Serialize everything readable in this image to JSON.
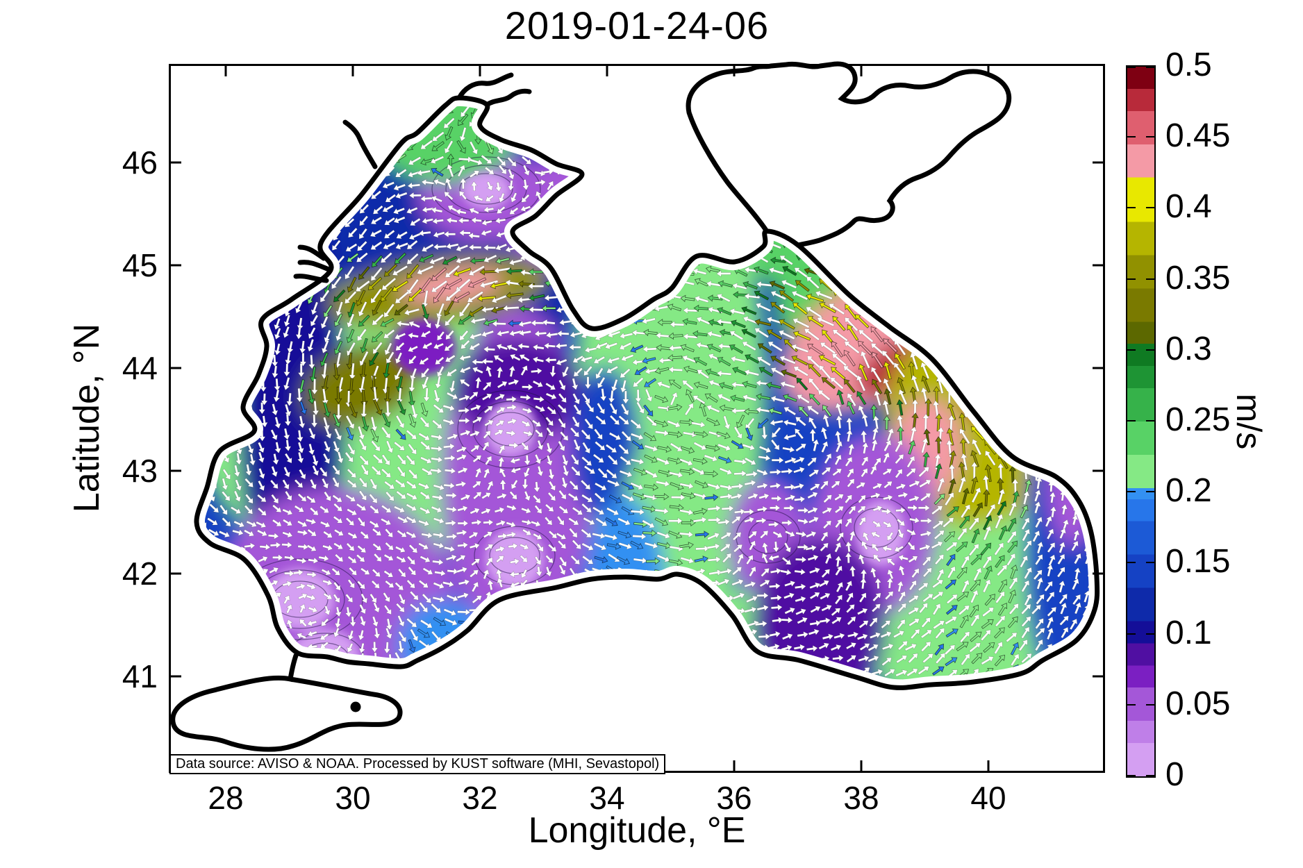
{
  "title": "2019-01-24-06",
  "axes": {
    "xlabel": "Longitude, °E",
    "ylabel": "Latitude, °N",
    "xticks": [
      28,
      30,
      32,
      34,
      36,
      38,
      40
    ],
    "yticks": [
      41,
      42,
      43,
      44,
      45,
      46
    ],
    "lon_range": [
      27.1,
      41.84
    ],
    "lat_range": [
      40.06,
      46.96
    ]
  },
  "annotation": "Data source: AVISO & NOAA. Processed by KUST software (MHI, Sevastopol)",
  "colorbar": {
    "unit": "m/s",
    "min": 0,
    "max": 0.5,
    "tick_labels": [
      "0.5",
      "0.45",
      "0.4",
      "0.35",
      "0.3",
      "0.25",
      "0.2",
      "0.15",
      "0.1",
      "0.05",
      "0"
    ],
    "tick_values": [
      0.5,
      0.45,
      0.4,
      0.35,
      0.3,
      0.25,
      0.2,
      0.15,
      0.1,
      0.05,
      0
    ],
    "levels": 64
  },
  "chart_data": {
    "type": "heatmap",
    "subtype": "vector-field-map",
    "region": "Black Sea surface current speed with velocity vectors",
    "date_label": "2019-01-24-06",
    "units": "m/s",
    "speed_range": [
      0,
      0.5
    ],
    "grid_note": "arrows drawn on ~0.2 deg grid, white or colored by local speed",
    "colormap": [
      [
        0.022,
        "#d49ff2"
      ],
      [
        0.042,
        "#bf7fe8"
      ],
      [
        0.062,
        "#a457d8"
      ],
      [
        0.08,
        "#7b1fc2"
      ],
      [
        0.092,
        "#500fa2"
      ],
      [
        0.11,
        "#140e98"
      ],
      [
        0.132,
        "#0e2aaa"
      ],
      [
        0.155,
        "#1542c4"
      ],
      [
        0.178,
        "#1c5ad6"
      ],
      [
        0.198,
        "#2776ea"
      ],
      [
        0.202,
        "#3390f2"
      ],
      [
        0.225,
        "#85e985"
      ],
      [
        0.25,
        "#58d266"
      ],
      [
        0.272,
        "#36b24a"
      ],
      [
        0.29,
        "#1e9434"
      ],
      [
        0.303,
        "#0f7a22"
      ],
      [
        0.322,
        "#5c6800"
      ],
      [
        0.347,
        "#7a7a00"
      ],
      [
        0.37,
        "#919100"
      ],
      [
        0.393,
        "#b5b500"
      ],
      [
        0.418,
        "#e8e800"
      ],
      [
        0.442,
        "#f49aa6"
      ],
      [
        0.465,
        "#df5f6f"
      ],
      [
        0.483,
        "#b82a3a"
      ],
      [
        1.0,
        "#7e0012"
      ]
    ],
    "base_speed": 0.135,
    "features_format": "[lon, lat, r_lon_deg, r_lat_deg, speed_mps, rot_deg]",
    "features": [
      [
        31.88,
        45.15,
        2.3,
        1.05,
        0.13,
        0
      ],
      [
        30.13,
        43.43,
        2.6,
        1.4,
        0.21,
        0
      ],
      [
        35.0,
        43.8,
        1.5,
        2.4,
        0.21,
        0
      ],
      [
        38.55,
        44.91,
        2.0,
        0.8,
        0.24,
        -25
      ],
      [
        39.75,
        41.77,
        1.9,
        1.25,
        0.22,
        0
      ],
      [
        33.74,
        40.89,
        3.7,
        0.65,
        0.12,
        0
      ],
      [
        29.04,
        43.66,
        0.85,
        2.1,
        0.1,
        0
      ],
      [
        32.59,
        42.92,
        1.2,
        1.65,
        0.05,
        0
      ],
      [
        29.69,
        41.64,
        1.95,
        1.2,
        0.06,
        0
      ],
      [
        32.04,
        45.69,
        1.0,
        0.45,
        0.05,
        0
      ],
      [
        33.61,
        45.52,
        1.3,
        0.58,
        0.05,
        0
      ],
      [
        32.59,
        43.8,
        1.05,
        0.5,
        0.09,
        0
      ],
      [
        31.44,
        46.3,
        1.15,
        0.5,
        0.23,
        0
      ],
      [
        30.73,
        46.49,
        0.6,
        0.28,
        0.25,
        0
      ],
      [
        37.02,
        45.25,
        0.9,
        0.5,
        0.25,
        0
      ],
      [
        33.96,
        43.26,
        0.55,
        0.75,
        0.15,
        0
      ],
      [
        35.16,
        42.41,
        0.95,
        1.05,
        0.22,
        0
      ],
      [
        34.28,
        41.8,
        0.65,
        0.95,
        0.2,
        0
      ],
      [
        31.33,
        44.74,
        1.75,
        0.32,
        0.37,
        -8
      ],
      [
        31.55,
        44.8,
        0.8,
        0.15,
        0.44,
        -8
      ],
      [
        30.13,
        43.83,
        0.95,
        0.38,
        0.33,
        -20
      ],
      [
        38.0,
        44.54,
        1.25,
        0.32,
        0.38,
        -28
      ],
      [
        38.27,
        44.27,
        1.7,
        0.58,
        0.42,
        -28
      ],
      [
        38.76,
        44.07,
        0.95,
        0.24,
        0.48,
        -28
      ],
      [
        39.75,
        43.46,
        1.4,
        1.0,
        0.38,
        0
      ],
      [
        40.06,
        43.76,
        0.48,
        0.32,
        0.47,
        0
      ],
      [
        39.04,
        43.22,
        0.55,
        0.48,
        0.43,
        0
      ],
      [
        31.11,
        44.2,
        0.5,
        0.28,
        0.07,
        0
      ],
      [
        36.54,
        42.34,
        0.65,
        0.6,
        0.05,
        0
      ],
      [
        38.2,
        42.47,
        1.0,
        0.9,
        0.05,
        0
      ],
      [
        41.17,
        42.24,
        0.6,
        1.45,
        0.14,
        0
      ],
      [
        41.33,
        42.82,
        0.4,
        0.55,
        0.06,
        0
      ],
      [
        31.44,
        41.3,
        0.75,
        0.45,
        0.2,
        0
      ],
      [
        36.03,
        41.3,
        0.85,
        0.55,
        0.22,
        0
      ],
      [
        37.34,
        41.5,
        1.05,
        0.85,
        0.09,
        0
      ],
      [
        32.1,
        45.73,
        0.38,
        0.18,
        0.02,
        0
      ],
      [
        33.76,
        45.55,
        0.45,
        0.2,
        0.02,
        0
      ],
      [
        32.48,
        43.41,
        0.42,
        0.27,
        0.02,
        0
      ],
      [
        32.55,
        42.14,
        0.46,
        0.3,
        0.02,
        0
      ],
      [
        29.17,
        41.75,
        0.55,
        0.3,
        0.02,
        0
      ],
      [
        29.56,
        41.18,
        0.55,
        0.28,
        0.02,
        0
      ],
      [
        38.31,
        42.39,
        0.38,
        0.32,
        0.02,
        0
      ]
    ],
    "eddies_format": "[lon, lat, radius_deg, spin(+cyclonic/-anticyclonic)]",
    "eddies": [
      [
        31.66,
        43.8,
        3.93,
        0.9
      ],
      [
        37.02,
        43.26,
        3.93,
        0.9
      ],
      [
        34.83,
        43.8,
        5.46,
        0.5
      ],
      [
        32.97,
        46.36,
        1.64,
        0.8
      ],
      [
        32.1,
        45.72,
        0.82,
        -1.6
      ],
      [
        33.66,
        45.54,
        0.93,
        -1.6
      ],
      [
        31.17,
        44.41,
        0.6,
        -1.2
      ],
      [
        32.54,
        43.19,
        1.09,
        -1.6
      ],
      [
        32.55,
        42.11,
        0.93,
        -1.4
      ],
      [
        29.37,
        41.64,
        1.31,
        -1.6
      ],
      [
        36.54,
        42.36,
        0.82,
        -1.4
      ],
      [
        38.2,
        42.47,
        0.98,
        -1.5
      ],
      [
        40.06,
        43.63,
        0.82,
        -1.2
      ]
    ]
  }
}
